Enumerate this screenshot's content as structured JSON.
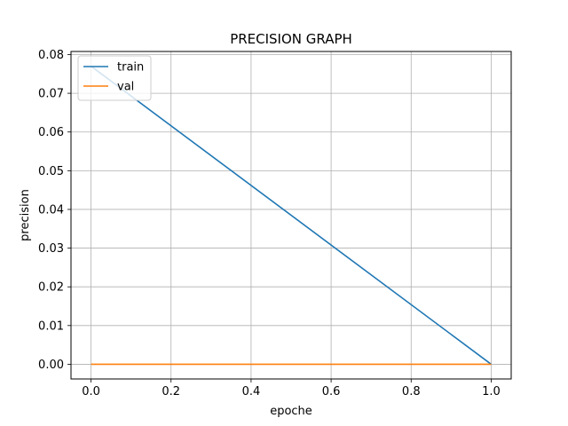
{
  "chart_data": {
    "type": "line",
    "title": "PRECISION GRAPH",
    "xlabel": "epoche",
    "ylabel": "precision",
    "xlim": [
      -0.05,
      1.05
    ],
    "ylim": [
      -0.0038,
      0.0808
    ],
    "x_ticks": [
      0.0,
      0.2,
      0.4,
      0.6,
      0.8,
      1.0
    ],
    "x_tick_labels": [
      "0.0",
      "0.2",
      "0.4",
      "0.6",
      "0.8",
      "1.0"
    ],
    "y_ticks": [
      0.0,
      0.01,
      0.02,
      0.03,
      0.04,
      0.05,
      0.06,
      0.07,
      0.08
    ],
    "y_tick_labels": [
      "0.00",
      "0.01",
      "0.02",
      "0.03",
      "0.04",
      "0.05",
      "0.06",
      "0.07",
      "0.08"
    ],
    "grid": true,
    "legend_position": "top-left",
    "series": [
      {
        "name": "train",
        "color": "#1f77b4",
        "x": [
          0,
          1
        ],
        "y": [
          0.077,
          0.0
        ]
      },
      {
        "name": "val",
        "color": "#ff7f0e",
        "x": [
          0,
          1
        ],
        "y": [
          0.0,
          0.0
        ]
      }
    ]
  }
}
